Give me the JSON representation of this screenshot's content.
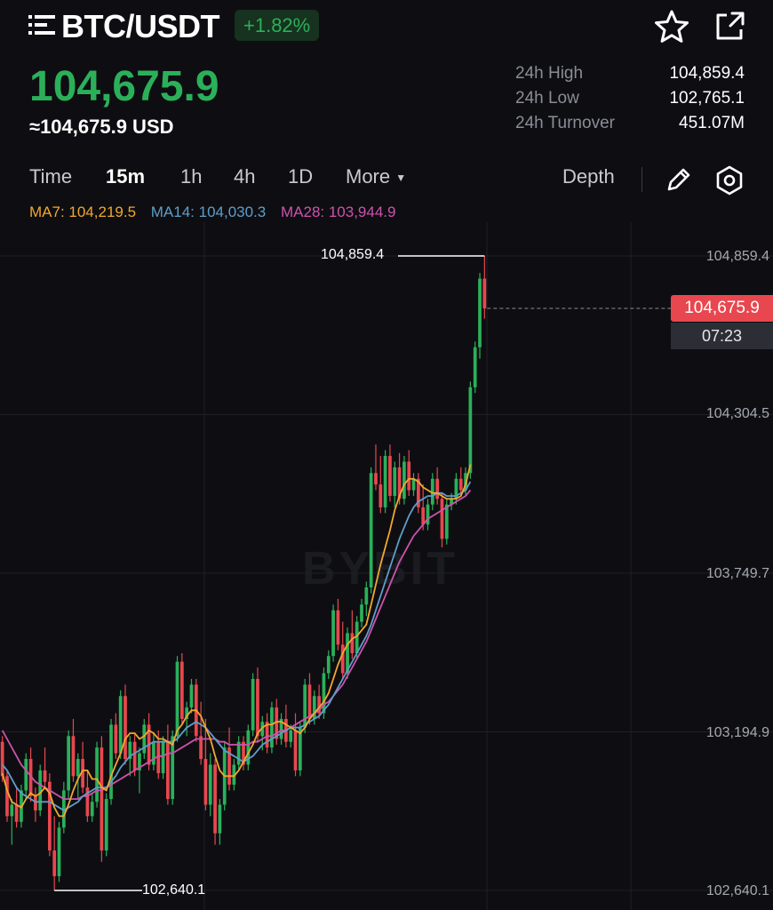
{
  "header": {
    "pair": "BTC/USDT",
    "change": "+1.82%",
    "menu_icon": "menu-icon",
    "favorite_icon": "star-icon",
    "share_icon": "share-icon"
  },
  "ticker": {
    "last_price": "104,675.9",
    "usd_equivalent": "≈104,675.9 USD",
    "stats": [
      {
        "label": "24h High",
        "value": "104,859.4"
      },
      {
        "label": "24h Low",
        "value": "102,765.1"
      },
      {
        "label": "24h Turnover",
        "value": "451.07M"
      }
    ]
  },
  "tabs": {
    "items": [
      "Time",
      "15m",
      "1h",
      "4h",
      "1D",
      "More"
    ],
    "active": "15m",
    "depth": "Depth"
  },
  "indicators": {
    "ma7": "MA7: 104,219.5",
    "ma14": "MA14: 104,030.3",
    "ma28": "MA28: 103,944.9"
  },
  "chart": {
    "y_ticks": [
      "104,859.4",
      "104,304.5",
      "103,749.7",
      "103,194.9",
      "102,640.1"
    ],
    "high_marker": "104,859.4",
    "low_marker": "102,640.1",
    "current_price_tag": "104,675.9",
    "countdown": "07:23",
    "watermark": "BYBIT",
    "colors": {
      "up": "#2bb05a",
      "down": "#e8474f",
      "ma7": "#f0a830",
      "ma14": "#5e9ecb",
      "ma28": "#cf52ad",
      "grid": "#1f2026"
    }
  },
  "chart_data": {
    "type": "candlestick",
    "interval": "15m",
    "ylim": [
      102640.1,
      104859.4
    ],
    "y_ticks": [
      104859.4,
      104304.5,
      103749.7,
      103194.9,
      102640.1
    ],
    "high": 104859.4,
    "low": 102640.1,
    "last": 104675.9,
    "candles": [
      [
        103160,
        103180,
        103020,
        103040
      ],
      [
        103040,
        103060,
        102880,
        102900
      ],
      [
        102900,
        102960,
        102800,
        102940
      ],
      [
        102940,
        103000,
        102860,
        102880
      ],
      [
        102880,
        103010,
        102860,
        102990
      ],
      [
        102990,
        103120,
        102960,
        103100
      ],
      [
        103100,
        103140,
        102950,
        102970
      ],
      [
        102970,
        103000,
        102880,
        102920
      ],
      [
        102920,
        103080,
        102900,
        103060
      ],
      [
        103060,
        103140,
        103000,
        103020
      ],
      [
        103020,
        103050,
        102760,
        102780
      ],
      [
        102780,
        102900,
        102640,
        102690
      ],
      [
        102690,
        102880,
        102670,
        102860
      ],
      [
        102860,
        103020,
        102840,
        102990
      ],
      [
        102990,
        103200,
        102960,
        103180
      ],
      [
        103180,
        103240,
        103020,
        103040
      ],
      [
        103040,
        103120,
        102960,
        103100
      ],
      [
        103100,
        103160,
        102980,
        103000
      ],
      [
        103000,
        103060,
        102880,
        102900
      ],
      [
        102900,
        102980,
        102880,
        102950
      ],
      [
        102950,
        103160,
        102930,
        103140
      ],
      [
        103140,
        103180,
        102740,
        102780
      ],
      [
        102780,
        102980,
        102760,
        102960
      ],
      [
        102960,
        103240,
        102940,
        103220
      ],
      [
        103220,
        103260,
        103100,
        103120
      ],
      [
        103120,
        103340,
        103100,
        103320
      ],
      [
        103320,
        103360,
        103080,
        103100
      ],
      [
        103100,
        103180,
        103040,
        103160
      ],
      [
        103160,
        103190,
        103040,
        103060
      ],
      [
        103060,
        103140,
        102980,
        103120
      ],
      [
        103120,
        103240,
        103100,
        103220
      ],
      [
        103220,
        103260,
        103060,
        103080
      ],
      [
        103080,
        103190,
        103060,
        103160
      ],
      [
        103160,
        103200,
        103030,
        103050
      ],
      [
        103050,
        103180,
        103030,
        103160
      ],
      [
        103160,
        103220,
        102940,
        102960
      ],
      [
        102960,
        103200,
        102940,
        103180
      ],
      [
        103180,
        103460,
        103160,
        103440
      ],
      [
        103440,
        103470,
        103220,
        103240
      ],
      [
        103240,
        103300,
        103180,
        103280
      ],
      [
        103280,
        103380,
        103260,
        103360
      ],
      [
        103360,
        103380,
        103160,
        103180
      ],
      [
        103180,
        103300,
        103080,
        103100
      ],
      [
        103100,
        103240,
        102920,
        102940
      ],
      [
        102940,
        103120,
        102900,
        103080
      ],
      [
        103080,
        103100,
        102800,
        102840
      ],
      [
        102840,
        102960,
        102800,
        102940
      ],
      [
        102940,
        103160,
        102920,
        103140
      ],
      [
        103140,
        103210,
        102990,
        103010
      ],
      [
        103010,
        103100,
        102990,
        103080
      ],
      [
        103080,
        103180,
        103060,
        103160
      ],
      [
        103160,
        103180,
        103060,
        103080
      ],
      [
        103080,
        103220,
        103060,
        103200
      ],
      [
        103200,
        103400,
        103180,
        103380
      ],
      [
        103380,
        103420,
        103160,
        103180
      ],
      [
        103180,
        103250,
        103130,
        103230
      ],
      [
        103230,
        103260,
        103120,
        103140
      ],
      [
        103140,
        103300,
        103120,
        103280
      ],
      [
        103280,
        103310,
        103150,
        103170
      ],
      [
        103170,
        103260,
        103150,
        103240
      ],
      [
        103240,
        103290,
        103140,
        103160
      ],
      [
        103160,
        103220,
        103140,
        103200
      ],
      [
        103200,
        103260,
        103040,
        103060
      ],
      [
        103060,
        103230,
        103040,
        103210
      ],
      [
        103210,
        103380,
        103190,
        103360
      ],
      [
        103360,
        103400,
        103220,
        103240
      ],
      [
        103240,
        103340,
        103220,
        103320
      ],
      [
        103320,
        103360,
        103240,
        103260
      ],
      [
        103260,
        103420,
        103240,
        103400
      ],
      [
        103400,
        103480,
        103380,
        103460
      ],
      [
        103460,
        103640,
        103440,
        103620
      ],
      [
        103620,
        103660,
        103480,
        103500
      ],
      [
        103500,
        103580,
        103380,
        103400
      ],
      [
        103400,
        103560,
        103380,
        103540
      ],
      [
        103540,
        103620,
        103450,
        103470
      ],
      [
        103470,
        103600,
        103450,
        103580
      ],
      [
        103580,
        103660,
        103560,
        103640
      ],
      [
        103640,
        103720,
        103600,
        103700
      ],
      [
        103700,
        104120,
        103680,
        104100
      ],
      [
        104100,
        104200,
        104040,
        104060
      ],
      [
        104060,
        104160,
        103960,
        103980
      ],
      [
        103980,
        104180,
        103960,
        104160
      ],
      [
        104160,
        104200,
        104000,
        104020
      ],
      [
        104020,
        104140,
        103980,
        104120
      ],
      [
        104120,
        104170,
        103990,
        104010
      ],
      [
        104010,
        104160,
        103990,
        104140
      ],
      [
        104140,
        104180,
        104020,
        104040
      ],
      [
        104040,
        104100,
        104020,
        104080
      ],
      [
        104080,
        104100,
        103960,
        103980
      ],
      [
        103980,
        104060,
        103900,
        103920
      ],
      [
        103920,
        104010,
        103900,
        103990
      ],
      [
        103990,
        104100,
        103970,
        104080
      ],
      [
        104080,
        104120,
        103990,
        104010
      ],
      [
        104010,
        104030,
        103840,
        103870
      ],
      [
        103870,
        104010,
        103850,
        103990
      ],
      [
        103990,
        104030,
        103970,
        104010
      ],
      [
        104010,
        104100,
        103990,
        104080
      ],
      [
        104080,
        104120,
        104020,
        104040
      ],
      [
        104040,
        104120,
        104020,
        104100
      ],
      [
        104100,
        104420,
        104080,
        104400
      ],
      [
        104400,
        104560,
        104380,
        104540
      ],
      [
        104540,
        104800,
        104500,
        104780
      ],
      [
        104780,
        104859.4,
        104640,
        104675.9
      ]
    ],
    "ma7": [
      103050,
      102990,
      102950,
      102940,
      102930,
      102960,
      102980,
      102970,
      102980,
      103000,
      102980,
      102930,
      102900,
      102900,
      102940,
      102990,
      103030,
      103060,
      103060,
      103030,
      103030,
      103000,
      102990,
      103040,
      103080,
      103120,
      103170,
      103190,
      103190,
      103170,
      103180,
      103200,
      103190,
      103170,
      103170,
      103160,
      103150,
      103200,
      103220,
      103250,
      103270,
      103270,
      103250,
      103210,
      103170,
      103110,
      103060,
      103040,
      103040,
      103040,
      103060,
      103090,
      103120,
      103150,
      103190,
      103210,
      103220,
      103220,
      103230,
      103230,
      103220,
      103210,
      103200,
      103190,
      103210,
      103240,
      103260,
      103280,
      103300,
      103330,
      103380,
      103430,
      103470,
      103500,
      103520,
      103530,
      103550,
      103570,
      103640,
      103710,
      103780,
      103840,
      103900,
      103970,
      104020,
      104060,
      104080,
      104080,
      104070,
      104050,
      104040,
      104030,
      104030,
      104020,
      104010,
      104010,
      104010,
      104020,
      104060,
      104130,
      104219.5
    ],
    "ma14": [
      103080,
      103060,
      103030,
      103000,
      102980,
      102970,
      102960,
      102950,
      102950,
      102950,
      102950,
      102940,
      102930,
      102920,
      102930,
      102940,
      102950,
      102970,
      102980,
      102990,
      103000,
      103000,
      103000,
      103020,
      103040,
      103070,
      103090,
      103110,
      103120,
      103130,
      103140,
      103150,
      103160,
      103160,
      103160,
      103160,
      103160,
      103170,
      103190,
      103210,
      103220,
      103230,
      103220,
      103210,
      103190,
      103170,
      103150,
      103130,
      103120,
      103110,
      103100,
      103090,
      103100,
      103110,
      103130,
      103150,
      103160,
      103170,
      103180,
      103190,
      103200,
      103210,
      103210,
      103210,
      103220,
      103230,
      103240,
      103250,
      103270,
      103290,
      103320,
      103350,
      103380,
      103410,
      103440,
      103470,
      103500,
      103530,
      103570,
      103620,
      103670,
      103720,
      103770,
      103820,
      103870,
      103910,
      103950,
      103980,
      104000,
      104010,
      104020,
      104020,
      104030,
      104030,
      104020,
      104020,
      104020,
      104030,
      104040,
      104070,
      104030.3
    ],
    "ma28": [
      103200,
      103170,
      103140,
      103110,
      103080,
      103060,
      103040,
      103020,
      103010,
      103000,
      102990,
      102980,
      102970,
      102960,
      102960,
      102960,
      102960,
      102970,
      102970,
      102980,
      102990,
      102990,
      103000,
      103010,
      103020,
      103030,
      103040,
      103050,
      103060,
      103070,
      103080,
      103090,
      103100,
      103110,
      103110,
      103120,
      103120,
      103130,
      103140,
      103150,
      103160,
      103170,
      103170,
      103170,
      103170,
      103170,
      103160,
      103160,
      103150,
      103150,
      103150,
      103150,
      103150,
      103160,
      103160,
      103170,
      103180,
      103180,
      103190,
      103200,
      103200,
      103210,
      103220,
      103230,
      103240,
      103250,
      103260,
      103270,
      103290,
      103300,
      103320,
      103340,
      103360,
      103390,
      103420,
      103450,
      103480,
      103510,
      103550,
      103590,
      103630,
      103670,
      103710,
      103750,
      103790,
      103820,
      103850,
      103880,
      103900,
      103920,
      103940,
      103950,
      103960,
      103970,
      103980,
      103990,
      104000,
      104010,
      104020,
      104040,
      103944.9
    ]
  }
}
